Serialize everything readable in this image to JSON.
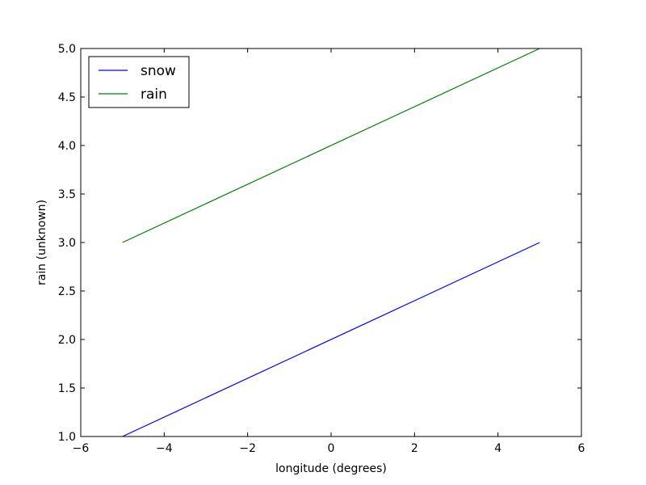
{
  "chart_data": {
    "type": "line",
    "title": "",
    "xlabel": "longitude (degrees)",
    "ylabel": "rain (unknown)",
    "xlim": [
      -6,
      6
    ],
    "ylim": [
      1.0,
      5.0
    ],
    "x_ticks": [
      -6,
      -4,
      -2,
      0,
      2,
      4,
      6
    ],
    "x_tick_labels": [
      "−6",
      "−4",
      "−2",
      "0",
      "2",
      "4",
      "6"
    ],
    "y_ticks": [
      1.0,
      1.5,
      2.0,
      2.5,
      3.0,
      3.5,
      4.0,
      4.5,
      5.0
    ],
    "y_tick_labels": [
      "1.0",
      "1.5",
      "2.0",
      "2.5",
      "3.0",
      "3.5",
      "4.0",
      "4.5",
      "5.0"
    ],
    "grid": false,
    "legend_position": "top-left",
    "series": [
      {
        "name": "snow",
        "color": "#0000ff",
        "x": [
          -5,
          5
        ],
        "y": [
          1.0,
          3.0
        ]
      },
      {
        "name": "rain",
        "color": "#008000",
        "x": [
          -5,
          5
        ],
        "y": [
          3.0,
          5.0
        ]
      }
    ]
  }
}
